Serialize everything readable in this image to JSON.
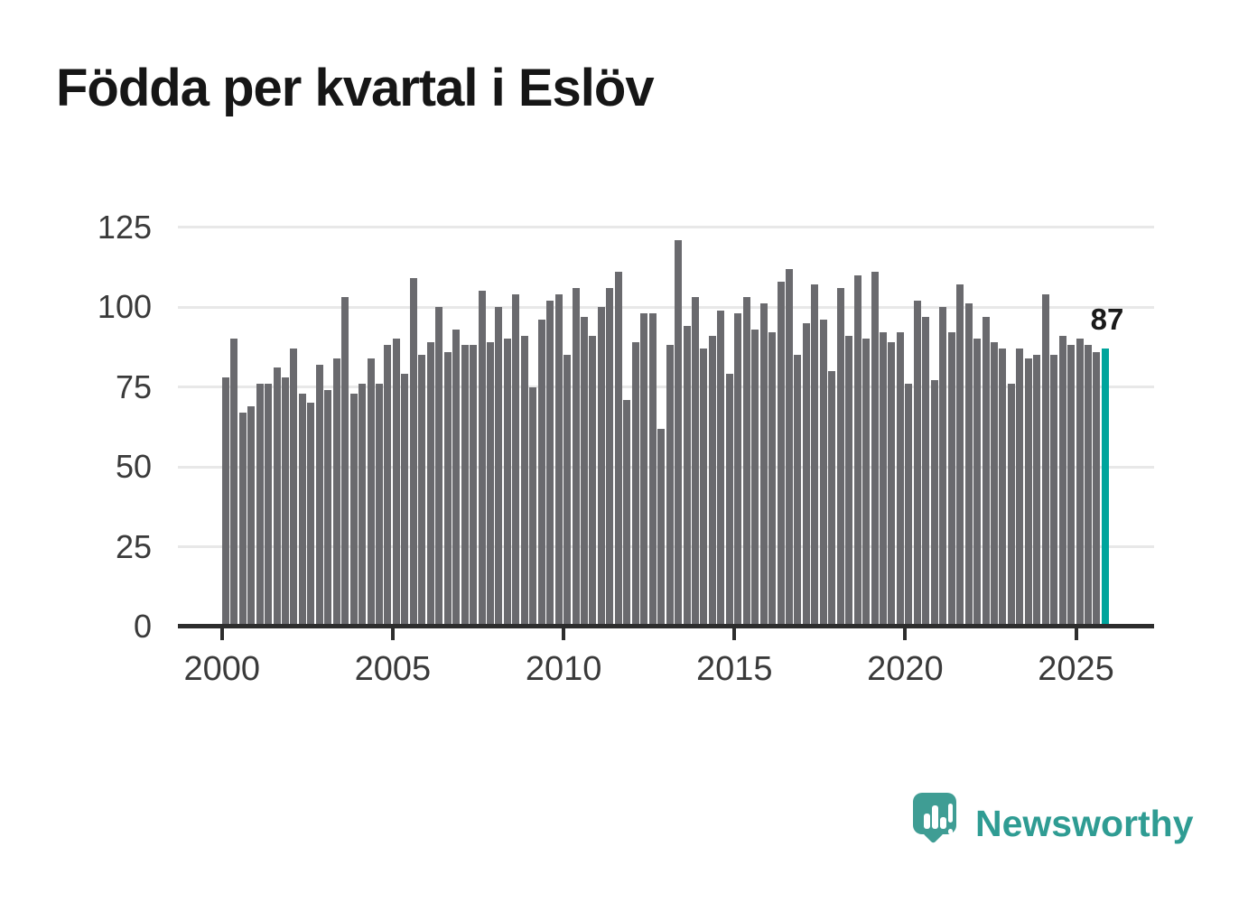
{
  "title": "Födda per kvartal i Eslöv",
  "annotation": {
    "last_value_label": "87"
  },
  "branding": {
    "logo_text": "Newsworthy",
    "logo_icon": "bar-chart-speech-bubble"
  },
  "colors": {
    "bar": "#6a6a6e",
    "highlight_bar": "#00a49c",
    "gridline": "#e8e8e8",
    "axis": "#2d2d2d",
    "tick_text": "#3a3a3a",
    "title_text": "#161616",
    "annotation_text": "#1a1a1a",
    "logo_teal": "#3f9d94",
    "logo_text_teal": "#2f9c93"
  },
  "chart_data": {
    "type": "bar",
    "title": "Födda per kvartal i Eslöv",
    "xlabel": "",
    "ylabel": "",
    "ylim": [
      0,
      125
    ],
    "y_ticks": [
      0,
      25,
      50,
      75,
      100,
      125
    ],
    "x_ticks": [
      2000,
      2005,
      2010,
      2015,
      2020,
      2025
    ],
    "grid": "horizontal",
    "legend": "none",
    "highlight": {
      "index": 103,
      "quarter": "2025 Q4",
      "value": 87,
      "label": "87"
    },
    "quarters": [
      "2000 Q1",
      "2000 Q2",
      "2000 Q3",
      "2000 Q4",
      "2001 Q1",
      "2001 Q2",
      "2001 Q3",
      "2001 Q4",
      "2002 Q1",
      "2002 Q2",
      "2002 Q3",
      "2002 Q4",
      "2003 Q1",
      "2003 Q2",
      "2003 Q3",
      "2003 Q4",
      "2004 Q1",
      "2004 Q2",
      "2004 Q3",
      "2004 Q4",
      "2005 Q1",
      "2005 Q2",
      "2005 Q3",
      "2005 Q4",
      "2006 Q1",
      "2006 Q2",
      "2006 Q3",
      "2006 Q4",
      "2007 Q1",
      "2007 Q2",
      "2007 Q3",
      "2007 Q4",
      "2008 Q1",
      "2008 Q2",
      "2008 Q3",
      "2008 Q4",
      "2009 Q1",
      "2009 Q2",
      "2009 Q3",
      "2009 Q4",
      "2010 Q1",
      "2010 Q2",
      "2010 Q3",
      "2010 Q4",
      "2011 Q1",
      "2011 Q2",
      "2011 Q3",
      "2011 Q4",
      "2012 Q1",
      "2012 Q2",
      "2012 Q3",
      "2012 Q4",
      "2013 Q1",
      "2013 Q2",
      "2013 Q3",
      "2013 Q4",
      "2014 Q1",
      "2014 Q2",
      "2014 Q3",
      "2014 Q4",
      "2015 Q1",
      "2015 Q2",
      "2015 Q3",
      "2015 Q4",
      "2016 Q1",
      "2016 Q2",
      "2016 Q3",
      "2016 Q4",
      "2017 Q1",
      "2017 Q2",
      "2017 Q3",
      "2017 Q4",
      "2018 Q1",
      "2018 Q2",
      "2018 Q3",
      "2018 Q4",
      "2019 Q1",
      "2019 Q2",
      "2019 Q3",
      "2019 Q4",
      "2020 Q1",
      "2020 Q2",
      "2020 Q3",
      "2020 Q4",
      "2021 Q1",
      "2021 Q2",
      "2021 Q3",
      "2021 Q4",
      "2022 Q1",
      "2022 Q2",
      "2022 Q3",
      "2022 Q4",
      "2023 Q1",
      "2023 Q2",
      "2023 Q3",
      "2023 Q4",
      "2024 Q1",
      "2024 Q2",
      "2024 Q3",
      "2024 Q4",
      "2025 Q1",
      "2025 Q2",
      "2025 Q3",
      "2025 Q4"
    ],
    "values": [
      78,
      90,
      67,
      69,
      76,
      76,
      81,
      78,
      87,
      73,
      70,
      82,
      74,
      84,
      103,
      73,
      76,
      84,
      76,
      88,
      90,
      79,
      109,
      85,
      89,
      100,
      86,
      93,
      88,
      88,
      105,
      89,
      100,
      90,
      104,
      91,
      75,
      96,
      102,
      104,
      85,
      106,
      97,
      91,
      100,
      106,
      111,
      71,
      89,
      98,
      98,
      62,
      88,
      121,
      94,
      103,
      87,
      91,
      99,
      79,
      98,
      103,
      93,
      101,
      92,
      108,
      112,
      85,
      95,
      107,
      96,
      80,
      106,
      91,
      110,
      90,
      111,
      92,
      89,
      92,
      76,
      102,
      97,
      77,
      100,
      92,
      107,
      101,
      90,
      97,
      89,
      87,
      76,
      87,
      84,
      85,
      104,
      85,
      91,
      88,
      90,
      88,
      86,
      87
    ]
  }
}
